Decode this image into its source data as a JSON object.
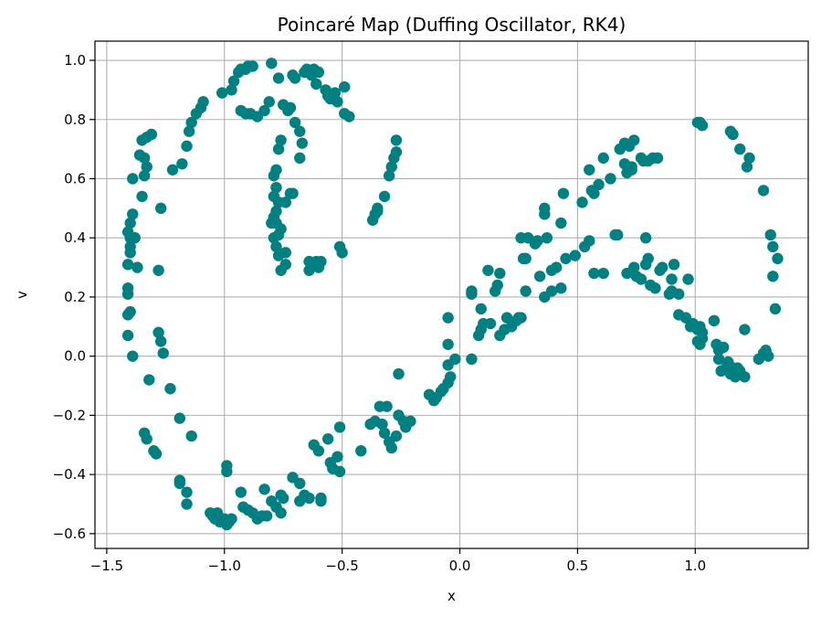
{
  "chart_data": {
    "type": "scatter",
    "title": "Poincaré Map (Duffing Oscillator, RK4)",
    "xlabel": "x",
    "ylabel": "v",
    "xlim": [
      -1.55,
      1.48
    ],
    "ylim": [
      -0.65,
      1.065
    ],
    "xticks": [
      -1.5,
      -1.0,
      -0.5,
      0.0,
      0.5,
      1.0
    ],
    "xtick_labels": [
      "−1.5",
      "−1.0",
      "−0.5",
      "0.0",
      "0.5",
      "1.0"
    ],
    "yticks": [
      -0.6,
      -0.4,
      -0.2,
      0.0,
      0.2,
      0.4,
      0.6,
      0.8,
      1.0
    ],
    "ytick_labels": [
      "−0.6",
      "−0.4",
      "−0.2",
      "0.0",
      "0.2",
      "0.4",
      "0.6",
      "0.8",
      "1.0"
    ],
    "grid": true,
    "marker_color": "#008080",
    "points": [
      [
        -1.41,
        0.42
      ],
      [
        -1.4,
        0.45
      ],
      [
        -1.39,
        0.48
      ],
      [
        -1.4,
        0.4
      ],
      [
        -1.4,
        0.37
      ],
      [
        -1.4,
        0.35
      ],
      [
        -1.38,
        0.4
      ],
      [
        -1.41,
        0.31
      ],
      [
        -1.41,
        0.23
      ],
      [
        -1.41,
        0.21
      ],
      [
        -1.41,
        0.14
      ],
      [
        -1.4,
        0.15
      ],
      [
        -1.41,
        0.07
      ],
      [
        -1.39,
        0.0
      ],
      [
        -1.39,
        0.6
      ],
      [
        -1.36,
        0.68
      ],
      [
        -1.35,
        0.73
      ],
      [
        -1.33,
        0.74
      ],
      [
        -1.31,
        0.75
      ],
      [
        -1.34,
        0.67
      ],
      [
        -1.33,
        0.64
      ],
      [
        -1.34,
        0.61
      ],
      [
        -1.35,
        0.54
      ],
      [
        -1.37,
        0.3
      ],
      [
        -1.28,
        0.29
      ],
      [
        -1.27,
        0.5
      ],
      [
        -1.28,
        0.08
      ],
      [
        -1.27,
        0.05
      ],
      [
        -1.26,
        0.01
      ],
      [
        -1.32,
        -0.08
      ],
      [
        -1.23,
        -0.11
      ],
      [
        -1.34,
        -0.26
      ],
      [
        -1.33,
        -0.28
      ],
      [
        -1.3,
        -0.32
      ],
      [
        -1.29,
        -0.33
      ],
      [
        -1.19,
        -0.21
      ],
      [
        -1.14,
        -0.27
      ],
      [
        -1.19,
        -0.42
      ],
      [
        -1.19,
        -0.43
      ],
      [
        -1.16,
        -0.46
      ],
      [
        -1.16,
        -0.5
      ],
      [
        -1.06,
        -0.53
      ],
      [
        -1.05,
        -0.54
      ],
      [
        -1.03,
        -0.53
      ],
      [
        -1.04,
        -0.55
      ],
      [
        -1.02,
        -0.56
      ],
      [
        -1.0,
        -0.55
      ],
      [
        -0.98,
        -0.56
      ],
      [
        -0.99,
        -0.57
      ],
      [
        -0.97,
        -0.55
      ],
      [
        -0.99,
        -0.37
      ],
      [
        -0.99,
        -0.39
      ],
      [
        -0.93,
        -0.46
      ],
      [
        -0.92,
        -0.51
      ],
      [
        -0.9,
        -0.52
      ],
      [
        -0.88,
        -0.53
      ],
      [
        -0.86,
        -0.55
      ],
      [
        -0.84,
        -0.54
      ],
      [
        -0.82,
        -0.54
      ],
      [
        -0.8,
        -0.49
      ],
      [
        -0.83,
        -0.45
      ],
      [
        -0.78,
        -0.51
      ],
      [
        -0.76,
        -0.47
      ],
      [
        -0.75,
        -0.48
      ],
      [
        -0.76,
        -0.53
      ],
      [
        -0.71,
        -0.41
      ],
      [
        -0.68,
        -0.43
      ],
      [
        -0.68,
        -0.49
      ],
      [
        -0.66,
        -0.47
      ],
      [
        -0.64,
        -0.48
      ],
      [
        -0.62,
        -0.3
      ],
      [
        -0.6,
        -0.32
      ],
      [
        -0.59,
        -0.48
      ],
      [
        -0.59,
        -0.49
      ],
      [
        -0.56,
        -0.28
      ],
      [
        -0.55,
        -0.36
      ],
      [
        -0.54,
        -0.38
      ],
      [
        -0.52,
        -0.34
      ],
      [
        -0.51,
        -0.39
      ],
      [
        -0.51,
        -0.24
      ],
      [
        -0.42,
        -0.32
      ],
      [
        -0.38,
        -0.23
      ],
      [
        -0.36,
        -0.22
      ],
      [
        -0.34,
        -0.17
      ],
      [
        -0.33,
        -0.23
      ],
      [
        -0.32,
        -0.26
      ],
      [
        -0.31,
        -0.17
      ],
      [
        -0.3,
        -0.29
      ],
      [
        -0.29,
        -0.31
      ],
      [
        -0.27,
        -0.27
      ],
      [
        -0.26,
        -0.2
      ],
      [
        -0.24,
        -0.22
      ],
      [
        -0.23,
        -0.24
      ],
      [
        -0.21,
        -0.22
      ],
      [
        -0.26,
        -0.06
      ],
      [
        -0.13,
        -0.13
      ],
      [
        -0.11,
        -0.15
      ],
      [
        -0.1,
        -0.14
      ],
      [
        -0.08,
        -0.12
      ],
      [
        -0.07,
        -0.11
      ],
      [
        -0.05,
        -0.09
      ],
      [
        -0.04,
        -0.07
      ],
      [
        -0.05,
        -0.03
      ],
      [
        -0.05,
        0.04
      ],
      [
        -0.05,
        0.13
      ],
      [
        -0.02,
        -0.01
      ],
      [
        0.05,
        0.21
      ],
      [
        0.05,
        0.22
      ],
      [
        0.05,
        -0.01
      ],
      [
        0.08,
        0.07
      ],
      [
        0.09,
        0.09
      ],
      [
        0.09,
        0.16
      ],
      [
        0.1,
        0.11
      ],
      [
        0.13,
        0.11
      ],
      [
        0.12,
        0.29
      ],
      [
        0.15,
        0.22
      ],
      [
        0.16,
        0.24
      ],
      [
        0.17,
        0.28
      ],
      [
        0.17,
        0.07
      ],
      [
        0.19,
        0.09
      ],
      [
        0.2,
        0.13
      ],
      [
        0.22,
        0.1
      ],
      [
        0.24,
        0.12
      ],
      [
        0.25,
        0.13
      ],
      [
        0.26,
        0.13
      ],
      [
        0.26,
        0.4
      ],
      [
        0.27,
        0.33
      ],
      [
        0.28,
        0.33
      ],
      [
        0.29,
        0.4
      ],
      [
        0.28,
        0.22
      ],
      [
        0.32,
        0.38
      ],
      [
        0.33,
        0.39
      ],
      [
        0.34,
        0.27
      ],
      [
        0.36,
        0.48
      ],
      [
        0.36,
        0.5
      ],
      [
        0.37,
        0.4
      ],
      [
        0.36,
        0.2
      ],
      [
        0.39,
        0.22
      ],
      [
        0.39,
        0.29
      ],
      [
        0.41,
        0.3
      ],
      [
        0.43,
        0.45
      ],
      [
        0.44,
        0.55
      ],
      [
        0.43,
        0.23
      ],
      [
        0.45,
        0.33
      ],
      [
        0.49,
        0.34
      ],
      [
        0.52,
        0.52
      ],
      [
        0.53,
        0.37
      ],
      [
        0.55,
        0.39
      ],
      [
        0.55,
        0.63
      ],
      [
        0.56,
        0.56
      ],
      [
        0.57,
        0.55
      ],
      [
        0.57,
        0.28
      ],
      [
        0.59,
        0.58
      ],
      [
        0.61,
        0.28
      ],
      [
        0.61,
        0.67
      ],
      [
        0.64,
        0.6
      ],
      [
        0.66,
        0.41
      ],
      [
        0.67,
        0.41
      ],
      [
        0.68,
        0.7
      ],
      [
        0.7,
        0.72
      ],
      [
        0.7,
        0.65
      ],
      [
        0.71,
        0.28
      ],
      [
        0.71,
        0.62
      ],
      [
        0.72,
        0.71
      ],
      [
        0.73,
        0.64
      ],
      [
        0.73,
        0.63
      ],
      [
        0.74,
        0.3
      ],
      [
        0.74,
        0.73
      ],
      [
        0.75,
        0.27
      ],
      [
        0.77,
        0.26
      ],
      [
        0.77,
        0.67
      ],
      [
        0.78,
        0.66
      ],
      [
        0.79,
        0.31
      ],
      [
        0.79,
        0.4
      ],
      [
        0.8,
        0.66
      ],
      [
        0.8,
        0.33
      ],
      [
        0.81,
        0.24
      ],
      [
        0.82,
        0.67
      ],
      [
        0.83,
        0.23
      ],
      [
        0.84,
        0.67
      ],
      [
        0.85,
        0.29
      ],
      [
        0.86,
        0.3
      ],
      [
        0.89,
        0.21
      ],
      [
        0.9,
        0.22
      ],
      [
        0.9,
        0.26
      ],
      [
        0.91,
        0.31
      ],
      [
        0.93,
        0.21
      ],
      [
        0.93,
        0.14
      ],
      [
        0.96,
        0.13
      ],
      [
        0.97,
        0.26
      ],
      [
        0.98,
        0.1
      ],
      [
        0.99,
        0.11
      ],
      [
        1.01,
        0.09
      ],
      [
        1.01,
        0.05
      ],
      [
        1.02,
        0.1
      ],
      [
        1.03,
        0.06
      ],
      [
        1.03,
        0.08
      ],
      [
        1.02,
        0.04
      ],
      [
        1.01,
        0.79
      ],
      [
        1.02,
        0.79
      ],
      [
        1.03,
        0.78
      ],
      [
        1.08,
        0.12
      ],
      [
        1.09,
        0.04
      ],
      [
        1.1,
        0.02
      ],
      [
        1.1,
        -0.01
      ],
      [
        1.11,
        -0.05
      ],
      [
        1.12,
        0.03
      ],
      [
        1.13,
        -0.04
      ],
      [
        1.14,
        -0.02
      ],
      [
        1.15,
        -0.06
      ],
      [
        1.16,
        -0.04
      ],
      [
        1.17,
        -0.07
      ],
      [
        1.18,
        -0.04
      ],
      [
        1.19,
        -0.05
      ],
      [
        1.19,
        -0.06
      ],
      [
        1.21,
        -0.07
      ],
      [
        1.21,
        0.09
      ],
      [
        1.15,
        0.76
      ],
      [
        1.16,
        0.75
      ],
      [
        1.19,
        0.7
      ],
      [
        1.22,
        0.64
      ],
      [
        1.23,
        0.67
      ],
      [
        1.27,
        -0.01
      ],
      [
        1.29,
        0.01
      ],
      [
        1.3,
        0.02
      ],
      [
        1.29,
        0.56
      ],
      [
        1.31,
        0.0
      ],
      [
        1.32,
        0.41
      ],
      [
        1.33,
        0.37
      ],
      [
        1.33,
        0.27
      ],
      [
        1.35,
        0.33
      ],
      [
        1.34,
        0.16
      ],
      [
        -1.22,
        0.63
      ],
      [
        -1.18,
        0.65
      ],
      [
        -1.16,
        0.71
      ],
      [
        -1.15,
        0.76
      ],
      [
        -1.14,
        0.79
      ],
      [
        -1.12,
        0.82
      ],
      [
        -1.1,
        0.84
      ],
      [
        -1.09,
        0.86
      ],
      [
        -1.01,
        0.89
      ],
      [
        -0.97,
        0.9
      ],
      [
        -0.96,
        0.93
      ],
      [
        -0.94,
        0.96
      ],
      [
        -0.93,
        0.97
      ],
      [
        -0.91,
        0.97
      ],
      [
        -0.9,
        0.98
      ],
      [
        -0.88,
        0.98
      ],
      [
        -0.8,
        0.99
      ],
      [
        -0.77,
        0.94
      ],
      [
        -0.71,
        0.95
      ],
      [
        -0.7,
        0.94
      ],
      [
        -0.66,
        0.96
      ],
      [
        -0.65,
        0.97
      ],
      [
        -0.63,
        0.95
      ],
      [
        -0.62,
        0.97
      ],
      [
        -0.61,
        0.92
      ],
      [
        -0.6,
        0.96
      ],
      [
        -0.57,
        0.9
      ],
      [
        -0.56,
        0.89
      ],
      [
        -0.55,
        0.87
      ],
      [
        -0.53,
        0.89
      ],
      [
        -0.52,
        0.86
      ],
      [
        -0.49,
        0.91
      ],
      [
        -0.49,
        0.82
      ],
      [
        -0.47,
        0.81
      ],
      [
        -0.56,
        0.88
      ],
      [
        -0.93,
        0.83
      ],
      [
        -0.91,
        0.82
      ],
      [
        -0.89,
        0.82
      ],
      [
        -0.86,
        0.81
      ],
      [
        -0.83,
        0.83
      ],
      [
        -0.81,
        0.86
      ],
      [
        -0.75,
        0.85
      ],
      [
        -0.73,
        0.83
      ],
      [
        -0.72,
        0.84
      ],
      [
        -0.7,
        0.79
      ],
      [
        -0.68,
        0.76
      ],
      [
        -0.67,
        0.72
      ],
      [
        -0.68,
        0.67
      ],
      [
        -0.76,
        0.73
      ],
      [
        -0.77,
        0.7
      ],
      [
        -0.78,
        0.63
      ],
      [
        -0.79,
        0.61
      ],
      [
        -0.78,
        0.57
      ],
      [
        -0.79,
        0.54
      ],
      [
        -0.77,
        0.52
      ],
      [
        -0.74,
        0.52
      ],
      [
        -0.72,
        0.55
      ],
      [
        -0.71,
        0.55
      ],
      [
        -0.78,
        0.49
      ],
      [
        -0.79,
        0.47
      ],
      [
        -0.8,
        0.45
      ],
      [
        -0.78,
        0.45
      ],
      [
        -0.76,
        0.43
      ],
      [
        -0.77,
        0.41
      ],
      [
        -0.79,
        0.4
      ],
      [
        -0.78,
        0.37
      ],
      [
        -0.77,
        0.34
      ],
      [
        -0.74,
        0.35
      ],
      [
        -0.74,
        0.31
      ],
      [
        -0.76,
        0.29
      ],
      [
        -0.64,
        0.29
      ],
      [
        -0.63,
        0.31
      ],
      [
        -0.64,
        0.32
      ],
      [
        -0.6,
        0.3
      ],
      [
        -0.59,
        0.32
      ],
      [
        -0.51,
        0.37
      ],
      [
        -0.5,
        0.35
      ],
      [
        -0.37,
        0.46
      ],
      [
        -0.36,
        0.48
      ],
      [
        -0.35,
        0.49
      ],
      [
        -0.35,
        0.5
      ],
      [
        -0.32,
        0.54
      ],
      [
        -0.3,
        0.61
      ],
      [
        -0.29,
        0.64
      ],
      [
        -0.28,
        0.67
      ],
      [
        -0.27,
        0.69
      ],
      [
        -0.27,
        0.73
      ],
      [
        -0.61,
        0.32
      ]
    ]
  }
}
